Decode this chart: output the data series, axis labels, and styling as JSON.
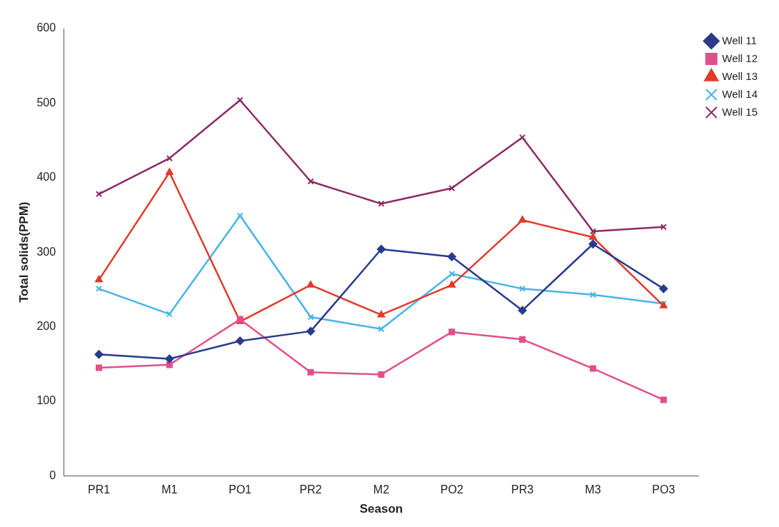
{
  "chart_data": {
    "type": "line",
    "xlabel": "Season",
    "ylabel": "Total solids(PPM)",
    "categories": [
      "PR1",
      "M1",
      "PO1",
      "PR2",
      "M2",
      "PO2",
      "PR3",
      "M3",
      "PO3"
    ],
    "series": [
      {
        "name": "Well 11",
        "color": "#283b8c",
        "marker": "diamond",
        "values": [
          163,
          157,
          181,
          194,
          304,
          294,
          222,
          311,
          251
        ]
      },
      {
        "name": "Well 12",
        "color": "#e0508c",
        "marker": "square",
        "values": [
          145,
          149,
          210,
          139,
          136,
          193,
          183,
          144,
          102
        ]
      },
      {
        "name": "Well 13",
        "color": "#e03a2a",
        "marker": "triangle",
        "values": [
          263,
          407,
          207,
          256,
          216,
          256,
          343,
          320,
          228
        ]
      },
      {
        "name": "Well 14",
        "color": "#48b4e6",
        "marker": "cross",
        "values": [
          251,
          217,
          349,
          213,
          197,
          271,
          251,
          243,
          231
        ]
      },
      {
        "name": "Well 15",
        "color": "#8a2a6a",
        "marker": "cross",
        "values": [
          378,
          426,
          504,
          395,
          365,
          386,
          454,
          328,
          334
        ]
      }
    ],
    "ylim": [
      0,
      600
    ],
    "yticks": [
      0,
      100,
      200,
      300,
      400,
      500,
      600
    ],
    "grid": false,
    "legend": "top right",
    "line_style": "solid"
  }
}
